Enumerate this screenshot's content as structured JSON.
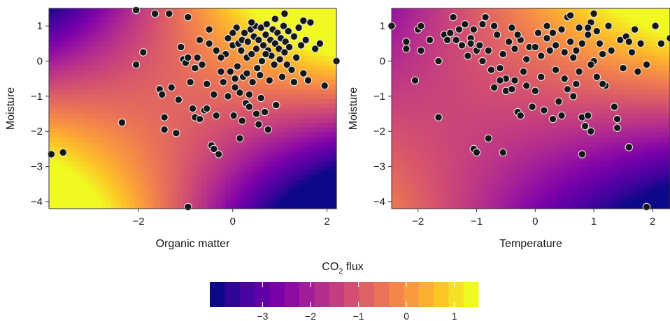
{
  "chart_data": [
    {
      "type": "heatmap-scatter",
      "xlabel": "Organic matter",
      "ylabel": "Moisture",
      "xlim": [
        -3.9,
        2.2
      ],
      "ylim": [
        -4.2,
        1.5
      ],
      "xticks": [
        -2,
        0,
        2
      ],
      "yticks": [
        1,
        0,
        -1,
        -2,
        -3,
        -4
      ],
      "surface": {
        "intercept": 0.0,
        "slope_x": 0.55,
        "slope_y": 0.65,
        "interaction": 0.5
      },
      "points": [
        [
          -3.85,
          -2.65
        ],
        [
          -3.6,
          -2.6
        ],
        [
          -2.35,
          -1.75
        ],
        [
          -2.05,
          -0.1
        ],
        [
          -1.9,
          0.25
        ],
        [
          -1.55,
          -0.8
        ],
        [
          -1.5,
          -0.95
        ],
        [
          -1.45,
          -1.6
        ],
        [
          -1.45,
          -1.95
        ],
        [
          -1.3,
          -0.75
        ],
        [
          -1.2,
          -2.05
        ],
        [
          -1.15,
          -1.1
        ],
        [
          -1.1,
          0.4
        ],
        [
          -1.05,
          0.05
        ],
        [
          -1.0,
          -0.05
        ],
        [
          -0.95,
          0.1
        ],
        [
          -0.9,
          -0.6
        ],
        [
          -0.85,
          -1.35
        ],
        [
          -0.8,
          -1.6
        ],
        [
          -0.75,
          0.1
        ],
        [
          -0.7,
          -1.65
        ],
        [
          -0.65,
          -0.1
        ],
        [
          -0.6,
          -1.4
        ],
        [
          -0.55,
          -0.65
        ],
        [
          -0.5,
          0.5
        ],
        [
          -0.45,
          -2.4
        ],
        [
          -0.4,
          -2.5
        ],
        [
          -0.35,
          -1.55
        ],
        [
          -0.3,
          -2.65
        ],
        [
          -0.25,
          -0.3
        ],
        [
          -0.2,
          -0.6
        ],
        [
          -0.15,
          0.2
        ],
        [
          -0.1,
          -1.0
        ],
        [
          -0.05,
          -0.3
        ],
        [
          0.0,
          0.45
        ],
        [
          0.02,
          -1.55
        ],
        [
          0.05,
          -0.75
        ],
        [
          0.08,
          0.95
        ],
        [
          0.1,
          -0.15
        ],
        [
          0.12,
          0.5
        ],
        [
          0.15,
          -0.9
        ],
        [
          0.18,
          0.3
        ],
        [
          0.2,
          0.6
        ],
        [
          0.22,
          -0.45
        ],
        [
          0.25,
          0.8
        ],
        [
          0.28,
          -1.2
        ],
        [
          0.3,
          0.1
        ],
        [
          0.32,
          0.55
        ],
        [
          0.35,
          -0.95
        ],
        [
          0.38,
          0.9
        ],
        [
          0.4,
          0.2
        ],
        [
          0.42,
          -0.6
        ],
        [
          0.45,
          0.7
        ],
        [
          0.48,
          1.0
        ],
        [
          0.5,
          0.35
        ],
        [
          0.52,
          -0.2
        ],
        [
          0.55,
          0.6
        ],
        [
          0.58,
          -0.4
        ],
        [
          0.6,
          0.95
        ],
        [
          0.62,
          0.0
        ],
        [
          0.65,
          0.45
        ],
        [
          0.68,
          -1.45
        ],
        [
          0.7,
          0.75
        ],
        [
          0.72,
          1.05
        ],
        [
          0.75,
          0.3
        ],
        [
          0.78,
          -0.55
        ],
        [
          0.8,
          0.6
        ],
        [
          0.82,
          0.15
        ],
        [
          0.85,
          0.9
        ],
        [
          0.88,
          -0.1
        ],
        [
          0.9,
          0.5
        ],
        [
          0.92,
          -1.25
        ],
        [
          0.95,
          0.8
        ],
        [
          0.98,
          0.35
        ],
        [
          1.0,
          0.05
        ],
        [
          1.02,
          0.65
        ],
        [
          1.05,
          -0.45
        ],
        [
          1.08,
          1.0
        ],
        [
          1.1,
          0.25
        ],
        [
          1.12,
          0.55
        ],
        [
          1.15,
          -0.1
        ],
        [
          1.18,
          0.85
        ],
        [
          1.2,
          0.4
        ],
        [
          1.25,
          -0.25
        ],
        [
          1.3,
          0.7
        ],
        [
          1.35,
          0.1
        ],
        [
          1.4,
          0.95
        ],
        [
          1.45,
          0.45
        ],
        [
          1.5,
          -0.35
        ],
        [
          1.55,
          0.6
        ],
        [
          1.65,
          1.1
        ],
        [
          1.75,
          0.35
        ],
        [
          1.95,
          -0.7
        ],
        [
          2.2,
          0.0
        ],
        [
          0.3,
          -0.35
        ],
        [
          0.6,
          -1.05
        ],
        [
          -0.8,
          -0.2
        ],
        [
          -0.4,
          -0.95
        ],
        [
          0.9,
          1.2
        ],
        [
          -0.5,
          0.9
        ],
        [
          0.2,
          -1.7
        ],
        [
          0.5,
          -1.5
        ],
        [
          -1.65,
          1.35
        ],
        [
          -1.35,
          1.35
        ],
        [
          -0.95,
          1.25
        ],
        [
          1.1,
          1.35
        ],
        [
          1.5,
          1.15
        ],
        [
          -2.05,
          1.45
        ],
        [
          0.75,
          -1.95
        ],
        [
          -0.95,
          -4.15
        ],
        [
          0.55,
          -1.8
        ],
        [
          -0.7,
          0.6
        ],
        [
          0.0,
          0.8
        ],
        [
          1.3,
          -0.6
        ],
        [
          0.15,
          -2.2
        ],
        [
          0.4,
          1.1
        ],
        [
          -0.1,
          0.65
        ],
        [
          -0.35,
          0.3
        ],
        [
          1.85,
          0.5
        ],
        [
          0.05,
          -0.5
        ],
        [
          -0.55,
          -1.35
        ],
        [
          0.35,
          -1.3
        ],
        [
          1.6,
          -0.55
        ],
        [
          -0.25,
          0.1
        ],
        [
          0.7,
          0.2
        ]
      ]
    },
    {
      "type": "heatmap-scatter",
      "xlabel": "Temperature",
      "ylabel": "Moisture",
      "xlim": [
        -2.45,
        2.3
      ],
      "ylim": [
        -4.2,
        1.5
      ],
      "xticks": [
        -2,
        -1,
        0,
        1,
        2
      ],
      "yticks": [
        1,
        0,
        -1,
        -2,
        -3,
        -4
      ],
      "surface": {
        "intercept": -0.6,
        "slope_x": 0.5,
        "slope_y": 0.5,
        "interaction": 0.35
      },
      "points": [
        [
          -2.45,
          1.0
        ],
        [
          -2.2,
          0.35
        ],
        [
          -2.2,
          0.55
        ],
        [
          -2.05,
          -0.55
        ],
        [
          -2.0,
          0.9
        ],
        [
          -1.95,
          1.0
        ],
        [
          -1.95,
          0.3
        ],
        [
          -1.65,
          -1.6
        ],
        [
          -1.65,
          0.0
        ],
        [
          -1.55,
          0.75
        ],
        [
          -1.5,
          0.6
        ],
        [
          -1.45,
          0.8
        ],
        [
          -1.4,
          1.25
        ],
        [
          -1.35,
          0.6
        ],
        [
          -1.3,
          0.9
        ],
        [
          -1.25,
          0.45
        ],
        [
          -1.2,
          1.05
        ],
        [
          -1.15,
          0.15
        ],
        [
          -1.1,
          0.65
        ],
        [
          -1.05,
          0.9
        ],
        [
          -1.05,
          -2.5
        ],
        [
          -1.0,
          -2.6
        ],
        [
          -1.0,
          0.3
        ],
        [
          -0.95,
          0.45
        ],
        [
          -0.9,
          1.05
        ],
        [
          -0.85,
          1.25
        ],
        [
          -0.8,
          0.3
        ],
        [
          -0.75,
          -0.25
        ],
        [
          -0.7,
          1.0
        ],
        [
          -0.7,
          -0.75
        ],
        [
          -0.65,
          0.75
        ],
        [
          -0.6,
          -0.2
        ],
        [
          -0.55,
          0.2
        ],
        [
          -0.5,
          -0.5
        ],
        [
          -0.5,
          -0.85
        ],
        [
          -0.45,
          0.55
        ],
        [
          -0.4,
          -0.8
        ],
        [
          -0.35,
          0.35
        ],
        [
          -0.35,
          -0.55
        ],
        [
          -0.3,
          -1.45
        ],
        [
          -0.25,
          0.6
        ],
        [
          -0.2,
          -0.3
        ],
        [
          -0.15,
          0.05
        ],
        [
          -0.1,
          0.4
        ],
        [
          -0.05,
          -1.3
        ],
        [
          0.0,
          -0.85
        ],
        [
          0.0,
          0.4
        ],
        [
          0.05,
          0.8
        ],
        [
          0.1,
          0.15
        ],
        [
          0.15,
          -1.4
        ],
        [
          0.2,
          0.65
        ],
        [
          0.25,
          0.3
        ],
        [
          0.3,
          -1.65
        ],
        [
          0.3,
          0.8
        ],
        [
          0.35,
          0.45
        ],
        [
          0.4,
          -1.15
        ],
        [
          0.45,
          0.9
        ],
        [
          0.5,
          -0.5
        ],
        [
          0.5,
          0.25
        ],
        [
          0.55,
          1.25
        ],
        [
          0.55,
          -0.8
        ],
        [
          0.6,
          0.55
        ],
        [
          0.65,
          -1.0
        ],
        [
          0.7,
          0.3
        ],
        [
          0.75,
          0.95
        ],
        [
          0.75,
          -0.3
        ],
        [
          0.8,
          0.5
        ],
        [
          0.8,
          -1.6
        ],
        [
          0.8,
          -2.65
        ],
        [
          0.85,
          -1.85
        ],
        [
          0.9,
          -1.55
        ],
        [
          0.9,
          0.75
        ],
        [
          0.95,
          -2.0
        ],
        [
          0.95,
          1.1
        ],
        [
          1.0,
          0.0
        ],
        [
          1.05,
          0.85
        ],
        [
          1.05,
          -0.45
        ],
        [
          1.1,
          0.5
        ],
        [
          1.15,
          0.2
        ],
        [
          1.2,
          -0.7
        ],
        [
          1.25,
          1.0
        ],
        [
          1.35,
          -1.3
        ],
        [
          1.4,
          -1.65
        ],
        [
          1.4,
          -1.9
        ],
        [
          1.45,
          0.6
        ],
        [
          1.5,
          -0.2
        ],
        [
          1.55,
          0.7
        ],
        [
          1.6,
          -2.45
        ],
        [
          1.65,
          0.25
        ],
        [
          1.7,
          0.9
        ],
        [
          1.75,
          -0.3
        ],
        [
          1.8,
          0.5
        ],
        [
          1.9,
          -0.1
        ],
        [
          2.05,
          1.0
        ],
        [
          2.15,
          0.5
        ],
        [
          2.3,
          0.65
        ],
        [
          1.9,
          -4.15
        ],
        [
          0.2,
          1.0
        ],
        [
          -0.4,
          0.95
        ],
        [
          0.6,
          1.3
        ],
        [
          1.0,
          1.35
        ],
        [
          -0.9,
          0.0
        ],
        [
          -0.6,
          -0.55
        ],
        [
          0.35,
          -0.25
        ],
        [
          0.65,
          0.1
        ],
        [
          -0.15,
          -0.7
        ],
        [
          1.15,
          -0.65
        ],
        [
          -0.3,
          0.75
        ],
        [
          0.45,
          -1.55
        ],
        [
          0.9,
          0.95
        ],
        [
          -1.1,
          0.5
        ],
        [
          1.3,
          0.3
        ],
        [
          0.1,
          -0.45
        ],
        [
          -0.55,
          -2.6
        ],
        [
          0.95,
          -0.1
        ],
        [
          -0.25,
          -1.55
        ],
        [
          0.7,
          -0.65
        ],
        [
          -1.8,
          0.6
        ],
        [
          1.6,
          0.55
        ],
        [
          -0.8,
          -2.2
        ]
      ]
    }
  ],
  "colorbar": {
    "title": "CO",
    "title_sub": "2",
    "title_rest": " flux",
    "ticks": [
      "−3",
      "−2",
      "−1",
      "0",
      "1"
    ],
    "tick_values": [
      -3,
      -2,
      -1,
      0,
      1
    ],
    "range": [
      -4.1,
      1.5
    ],
    "stops": [
      "#0d0887",
      "#2f0596",
      "#4903a0",
      "#6100a7",
      "#7801a8",
      "#8e0ca4",
      "#a21d9a",
      "#b42e8d",
      "#c43e7f",
      "#d24f71",
      "#de6164",
      "#e97257",
      "#f3854b",
      "#f99a3e",
      "#fcb030",
      "#fcc726",
      "#f6e025",
      "#f0f921"
    ]
  }
}
